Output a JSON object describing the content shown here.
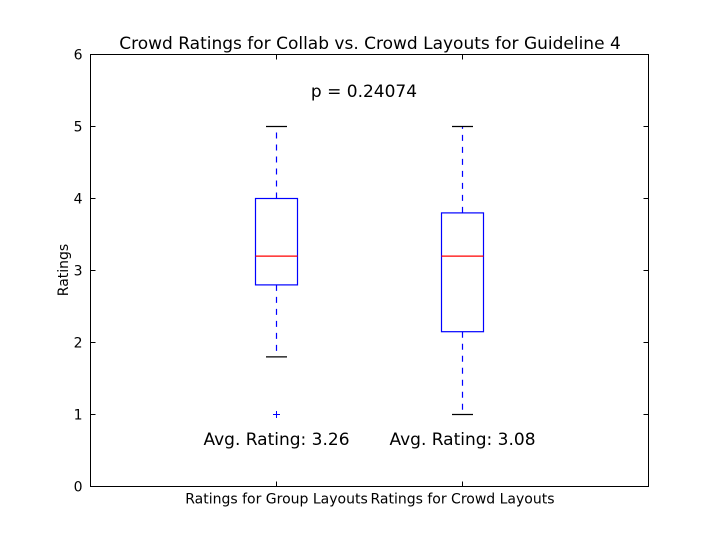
{
  "chart_data": {
    "type": "box",
    "title": "Crowd Ratings for Collab vs. Crowd Layouts for Guideline 4",
    "xlabel": "",
    "ylabel": "Ratings",
    "ylim": [
      0,
      6
    ],
    "yticks": [
      "0",
      "1",
      "2",
      "3",
      "4",
      "5",
      "6"
    ],
    "grid": false,
    "annotation": "p = 0.24074",
    "categories": [
      "Ratings for Group Layouts",
      "Ratings for Crowd Layouts"
    ],
    "boxes": [
      {
        "category": "Ratings for Group Layouts",
        "whisker_low": 1.8,
        "q1": 2.8,
        "median": 3.2,
        "q3": 4.0,
        "whisker_high": 5.0,
        "outliers": [
          1.0
        ],
        "avg_label": "Avg. Rating: 3.26"
      },
      {
        "category": "Ratings for Crowd Layouts",
        "whisker_low": 1.0,
        "q1": 2.15,
        "median": 3.2,
        "q3": 3.8,
        "whisker_high": 5.0,
        "outliers": [],
        "avg_label": "Avg. Rating: 3.08"
      }
    ],
    "colors": {
      "box": "#0000ff",
      "median": "#ff0000",
      "whisker": "#0000ff",
      "cap": "#000000",
      "outlier": "#0000ff"
    }
  }
}
